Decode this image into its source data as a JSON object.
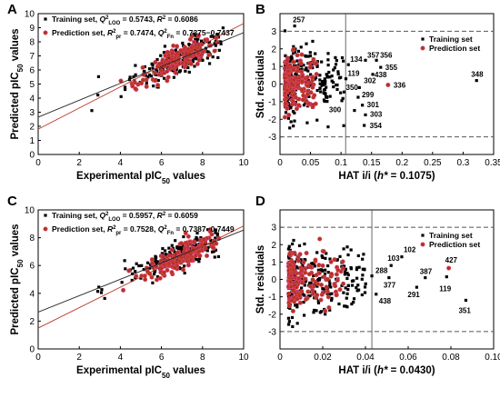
{
  "chart_data": [
    {
      "panel": "A",
      "type": "scatter",
      "xlabel": "Experimental  pIC50 values",
      "ylabel": "Predicted pIC50 values",
      "xlim": [
        0,
        10
      ],
      "ylim": [
        0,
        10
      ],
      "xticks": [
        "0",
        "2",
        "4",
        "6",
        "8",
        "10"
      ],
      "yticks": [
        "0",
        "1",
        "2",
        "3",
        "4",
        "5",
        "6",
        "7",
        "8",
        "9",
        "10"
      ],
      "legend_placement": "top-left",
      "legend": [
        {
          "series": "training",
          "text": "Training set, Q²LOO = 0.5743, R² = 0.6086"
        },
        {
          "series": "prediction",
          "text": "Prediction set, R²pr = 0.7474, Q²Fn = 0.7375−0.7437"
        }
      ],
      "fit_lines": [
        {
          "series": "training",
          "x": [
            0,
            10
          ],
          "y": [
            2.65,
            8.65
          ]
        },
        {
          "series": "prediction",
          "x": [
            0,
            10
          ],
          "y": [
            1.8,
            9.3
          ]
        }
      ],
      "series": [
        {
          "series": "training",
          "marker": "square",
          "color": "#000000",
          "seed": 11,
          "n": 230,
          "x_range": [
            2.2,
            9.0
          ],
          "center": 7.0,
          "spread": 1.1,
          "slope": 0.62,
          "intercept": 2.55,
          "noise": 0.55
        },
        {
          "series": "prediction",
          "marker": "circle",
          "color": "#b5341c",
          "seed": 23,
          "n": 160,
          "x_range": [
            3.7,
            8.8
          ],
          "center": 7.0,
          "spread": 0.9,
          "slope": 0.72,
          "intercept": 1.85,
          "noise": 0.45
        }
      ]
    },
    {
      "panel": "B",
      "type": "scatter",
      "xlabel": "HAT i/i (h* = 0.1075)",
      "ylabel": "Std. residuals",
      "xlim": [
        0,
        0.35
      ],
      "ylim": [
        -4,
        4
      ],
      "xticks": [
        "0",
        "0.05",
        "0.1",
        "0.15",
        "0.2",
        "0.25",
        "0.3",
        "0.35"
      ],
      "yticks": [
        "-3",
        "-2",
        "-1",
        "0",
        "1",
        "2",
        "3"
      ],
      "h_star": 0.1075,
      "hlines": [
        3,
        -3
      ],
      "legend_placement": "top-right",
      "legend": [
        {
          "series": "training",
          "text": "Training set"
        },
        {
          "series": "prediction",
          "text": "Prediction set"
        }
      ],
      "series": [
        {
          "series": "training",
          "marker": "square",
          "color": "#000000",
          "seed": 37,
          "n": 260,
          "x_range": [
            0.008,
            0.105
          ],
          "x_skew": 2.2,
          "noise": 1.0
        },
        {
          "series": "prediction",
          "marker": "circle",
          "color": "#b5341c",
          "seed": 41,
          "n": 150,
          "x_range": [
            0.008,
            0.06
          ],
          "x_skew": 2.0,
          "noise": 0.75
        }
      ],
      "labeled_points": [
        {
          "label": "257",
          "x": 0.024,
          "y": 3.3,
          "series": "training",
          "dx": -2,
          "dy": -4
        },
        {
          "label": "134",
          "x": 0.112,
          "y": 1.1,
          "series": "training",
          "dx": 2,
          "dy": -3
        },
        {
          "label": "119",
          "x": 0.108,
          "y": 0.3,
          "series": "training",
          "dx": 2,
          "dy": -3
        },
        {
          "label": "350",
          "x": 0.105,
          "y": -0.45,
          "series": "training",
          "dx": 2,
          "dy": -2
        },
        {
          "label": "357",
          "x": 0.14,
          "y": 1.35,
          "series": "training",
          "dx": 2,
          "dy": -3
        },
        {
          "label": "356",
          "x": 0.158,
          "y": 1.35,
          "series": "training",
          "dx": 4,
          "dy": -3
        },
        {
          "label": "355",
          "x": 0.165,
          "y": 0.95,
          "series": "training",
          "dx": 5,
          "dy": 3
        },
        {
          "label": "438",
          "x": 0.152,
          "y": 0.55,
          "series": "training",
          "dx": 2,
          "dy": 3
        },
        {
          "label": "336",
          "x": 0.177,
          "y": -0.05,
          "series": "prediction",
          "dx": 6,
          "dy": 3
        },
        {
          "label": "302",
          "x": 0.13,
          "y": -0.2,
          "series": "training",
          "dx": 5,
          "dy": -5
        },
        {
          "label": "299",
          "x": 0.128,
          "y": -0.75,
          "series": "training",
          "dx": 4,
          "dy": 0
        },
        {
          "label": "301",
          "x": 0.135,
          "y": -1.2,
          "series": "training",
          "dx": 5,
          "dy": 2
        },
        {
          "label": "300",
          "x": 0.122,
          "y": -1.5,
          "series": "training",
          "dx": -28,
          "dy": 2
        },
        {
          "label": "303",
          "x": 0.14,
          "y": -1.75,
          "series": "training",
          "dx": 5,
          "dy": 2
        },
        {
          "label": "354",
          "x": 0.138,
          "y": -2.35,
          "series": "training",
          "dx": 6,
          "dy": 3
        },
        {
          "label": "348",
          "x": 0.322,
          "y": 0.2,
          "series": "training",
          "dx": -6,
          "dy": -4
        }
      ]
    },
    {
      "panel": "C",
      "type": "scatter",
      "xlabel": "Experimental  pIC50 values",
      "ylabel": "Predicted pIC50 values",
      "xlim": [
        0,
        10
      ],
      "ylim": [
        0,
        10
      ],
      "xticks": [
        "0",
        "2",
        "4",
        "6",
        "8",
        "10"
      ],
      "yticks": [
        "0",
        "2",
        "4",
        "6",
        "8",
        "10"
      ],
      "legend_placement": "top-left",
      "legend": [
        {
          "series": "training",
          "text": "Training set, Q²LOO = 0.5957, R² = 0.6059"
        },
        {
          "series": "prediction",
          "text": "Prediction set, R²pr = 0.7528, Q²Fn = 0.7387−0.7449"
        }
      ],
      "fit_lines": [
        {
          "series": "training",
          "x": [
            0,
            10
          ],
          "y": [
            2.65,
            8.55
          ]
        },
        {
          "series": "prediction",
          "x": [
            0,
            10
          ],
          "y": [
            1.5,
            8.85
          ]
        }
      ],
      "series": [
        {
          "series": "training",
          "marker": "square",
          "color": "#000000",
          "seed": 53,
          "n": 230,
          "x_range": [
            2.2,
            8.8
          ],
          "center": 7.0,
          "spread": 1.1,
          "slope": 0.6,
          "intercept": 2.6,
          "noise": 0.5
        },
        {
          "series": "prediction",
          "marker": "circle",
          "color": "#b5341c",
          "seed": 59,
          "n": 160,
          "x_range": [
            3.7,
            8.8
          ],
          "center": 7.0,
          "spread": 0.9,
          "slope": 0.74,
          "intercept": 1.5,
          "noise": 0.4
        }
      ]
    },
    {
      "panel": "D",
      "type": "scatter",
      "xlabel": "HAT i/i (h* = 0.0430)",
      "ylabel": "Std. residuals",
      "xlim": [
        0,
        0.1
      ],
      "ylim": [
        -4,
        4
      ],
      "xticks": [
        "0",
        "0.02",
        "0.04",
        "0.06",
        "0.08",
        "0.10"
      ],
      "yticks": [
        "-3",
        "-2",
        "-1",
        "0",
        "1",
        "2",
        "3"
      ],
      "h_star": 0.043,
      "hlines": [
        3,
        -3
      ],
      "legend_placement": "top-right",
      "legend": [
        {
          "series": "training",
          "text": "Training set"
        },
        {
          "series": "prediction",
          "text": "Prediction set"
        }
      ],
      "series": [
        {
          "series": "training",
          "marker": "square",
          "color": "#000000",
          "seed": 71,
          "n": 260,
          "x_range": [
            0.004,
            0.041
          ],
          "x_skew": 2.2,
          "noise": 1.0
        },
        {
          "series": "prediction",
          "marker": "circle",
          "color": "#b5341c",
          "seed": 79,
          "n": 150,
          "x_range": [
            0.004,
            0.03
          ],
          "x_skew": 2.0,
          "noise": 0.75
        }
      ],
      "labeled_points": [
        {
          "label": "102",
          "x": 0.057,
          "y": 1.3,
          "series": "training",
          "dx": 2,
          "dy": -5
        },
        {
          "label": "103",
          "x": 0.052,
          "y": 0.8,
          "series": "training",
          "dx": -4,
          "dy": -5
        },
        {
          "label": "427",
          "x": 0.079,
          "y": 0.65,
          "series": "prediction",
          "dx": -4,
          "dy": -6
        },
        {
          "label": "288",
          "x": 0.043,
          "y": 0.2,
          "series": "training",
          "dx": 4,
          "dy": -3
        },
        {
          "label": "377",
          "x": 0.051,
          "y": 0.1,
          "series": "training",
          "dx": -6,
          "dy": 11
        },
        {
          "label": "387",
          "x": 0.068,
          "y": 0.1,
          "series": "training",
          "dx": -6,
          "dy": -4
        },
        {
          "label": "291",
          "x": 0.064,
          "y": -0.45,
          "series": "training",
          "dx": -10,
          "dy": 11
        },
        {
          "label": "119",
          "x": 0.078,
          "y": 0.15,
          "series": "training",
          "dx": -8,
          "dy": 16
        },
        {
          "label": "438",
          "x": 0.045,
          "y": -0.85,
          "series": "training",
          "dx": 3,
          "dy": 10
        },
        {
          "label": "351",
          "x": 0.087,
          "y": -1.2,
          "series": "training",
          "dx": -8,
          "dy": 14
        }
      ]
    }
  ]
}
